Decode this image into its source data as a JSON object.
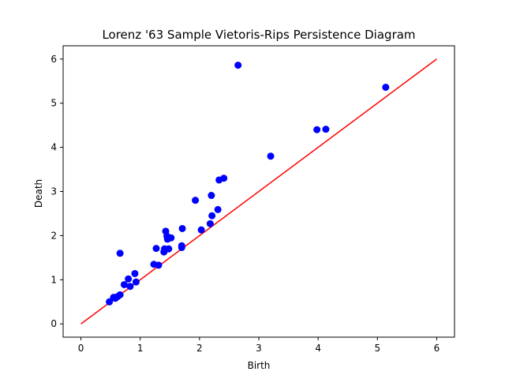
{
  "chart_data": {
    "type": "scatter",
    "title": "Lorenz '63 Sample Vietoris-Rips Persistence Diagram",
    "xlabel": "Birth",
    "ylabel": "Death",
    "xlim": [
      -0.3,
      6.3
    ],
    "ylim": [
      -0.3,
      6.3
    ],
    "xticks": [
      0,
      1,
      2,
      3,
      4,
      5,
      6
    ],
    "yticks": [
      0,
      1,
      2,
      3,
      4,
      5,
      6
    ],
    "grid": false,
    "point_color": "#0000ff",
    "line_color": "#ff0000",
    "reference_line": {
      "x": [
        0,
        6
      ],
      "y": [
        0,
        6
      ]
    },
    "points": [
      [
        0.48,
        0.5
      ],
      [
        0.55,
        0.6
      ],
      [
        0.58,
        0.58
      ],
      [
        0.62,
        0.62
      ],
      [
        0.66,
        0.66
      ],
      [
        0.66,
        1.6
      ],
      [
        0.73,
        0.89
      ],
      [
        0.8,
        1.02
      ],
      [
        0.83,
        0.85
      ],
      [
        0.91,
        1.14
      ],
      [
        0.93,
        0.95
      ],
      [
        1.23,
        1.35
      ],
      [
        1.27,
        1.71
      ],
      [
        1.31,
        1.33
      ],
      [
        1.4,
        1.63
      ],
      [
        1.41,
        1.7
      ],
      [
        1.43,
        2.1
      ],
      [
        1.45,
        1.99
      ],
      [
        1.46,
        1.92
      ],
      [
        1.48,
        1.7
      ],
      [
        1.52,
        1.95
      ],
      [
        1.7,
        1.73
      ],
      [
        1.7,
        1.77
      ],
      [
        1.71,
        2.16
      ],
      [
        1.93,
        2.8
      ],
      [
        2.03,
        2.13
      ],
      [
        2.18,
        2.27
      ],
      [
        2.2,
        2.91
      ],
      [
        2.21,
        2.45
      ],
      [
        2.31,
        2.59
      ],
      [
        2.33,
        3.26
      ],
      [
        2.41,
        3.3
      ],
      [
        2.65,
        5.86
      ],
      [
        3.2,
        3.8
      ],
      [
        3.98,
        4.4
      ],
      [
        4.13,
        4.41
      ],
      [
        5.14,
        5.36
      ]
    ]
  }
}
